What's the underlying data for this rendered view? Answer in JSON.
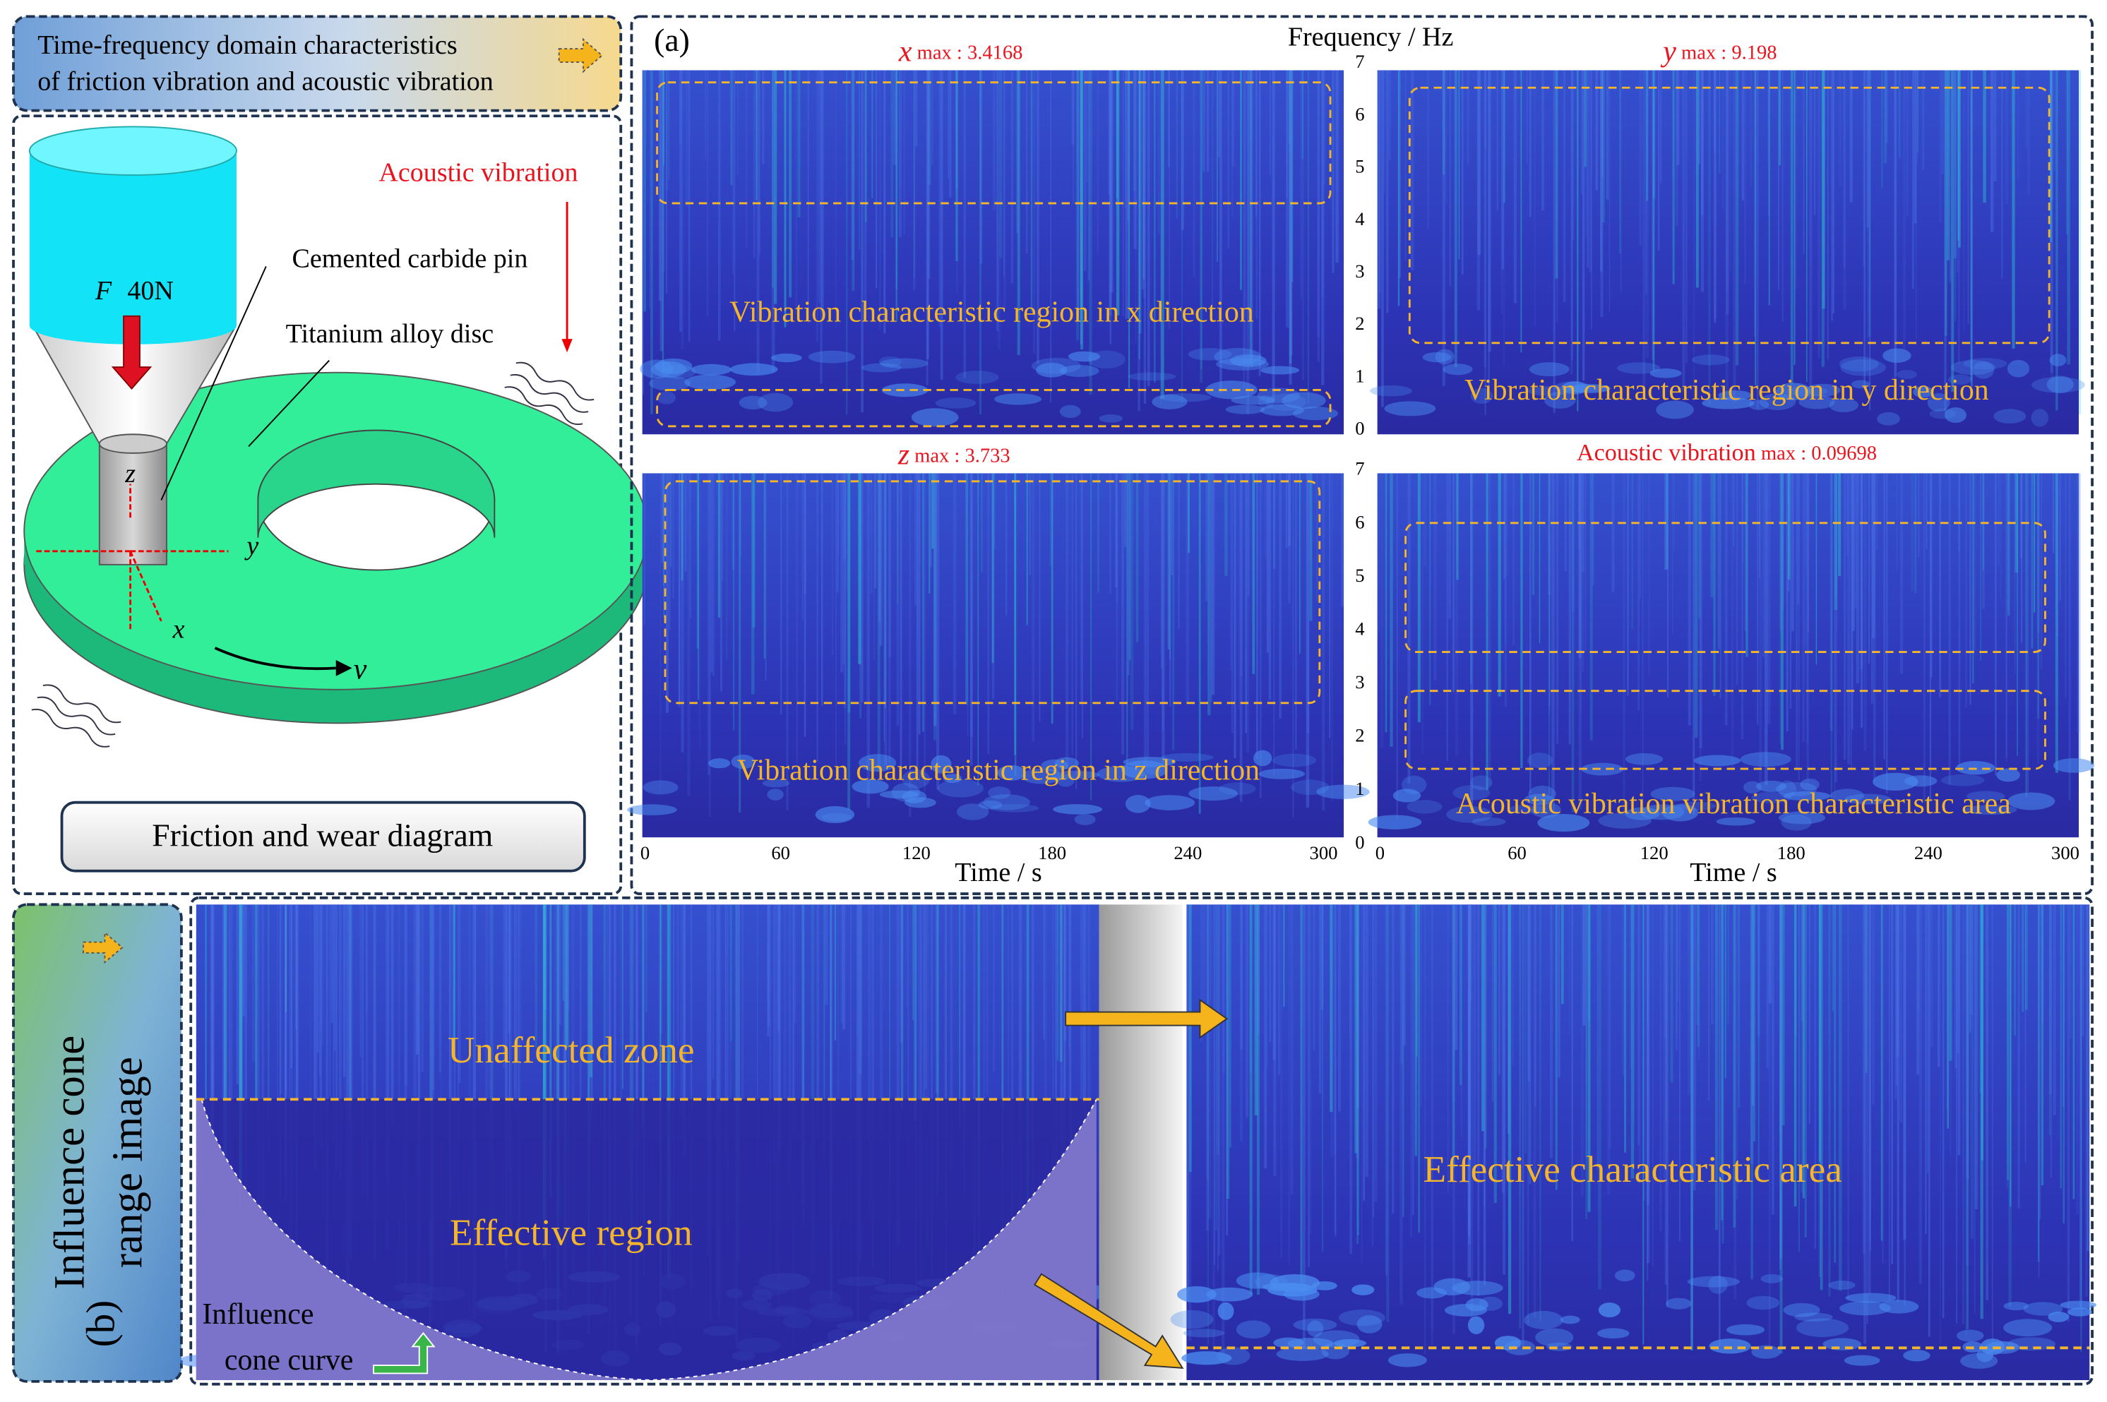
{
  "header": {
    "title_lines": [
      "Time-frequency domain characteristics",
      "of friction vibration and acoustic vibration"
    ]
  },
  "diagram": {
    "labels": {
      "acoustic": "Acoustic vibration",
      "pin": "Cemented carbide pin",
      "force_symbol": "F",
      "force_value": "40N",
      "disc": "Titanium alloy disc",
      "axis_z": "z",
      "axis_y": "y",
      "axis_x": "x",
      "velocity": "v"
    },
    "caption": "Friction and wear diagram"
  },
  "panel_a": {
    "label": "(a)",
    "y_axis_title": "Frequency / Hz",
    "x_axis_title": "Time / s",
    "freq_ticks": [
      0,
      1,
      2,
      3,
      4,
      5,
      6,
      7
    ],
    "time_ticks": [
      0,
      60,
      120,
      180,
      240,
      300
    ],
    "plots": [
      {
        "symbol": "x",
        "max_label": "max : 3.4168",
        "region_label": "Vibration characteristic region in x direction"
      },
      {
        "symbol": "y",
        "max_label": "max : 9.198",
        "region_label": "Vibration characteristic region in y direction"
      },
      {
        "symbol": "z",
        "max_label": "max : 3.733",
        "region_label": "Vibration characteristic region in z direction"
      },
      {
        "symbol": "Acoustic vibration",
        "max_label": "max : 0.09698",
        "region_label": "Acoustic vibration vibration characteristic area"
      }
    ]
  },
  "panel_b": {
    "label": "(b)",
    "title_lines": [
      "Influence cone",
      "range image"
    ],
    "unaffected": "Unaffected zone",
    "effective": "Effective region",
    "curve_lines": [
      "Influence",
      "cone curve"
    ],
    "effective_area": "Effective characteristic area"
  }
}
